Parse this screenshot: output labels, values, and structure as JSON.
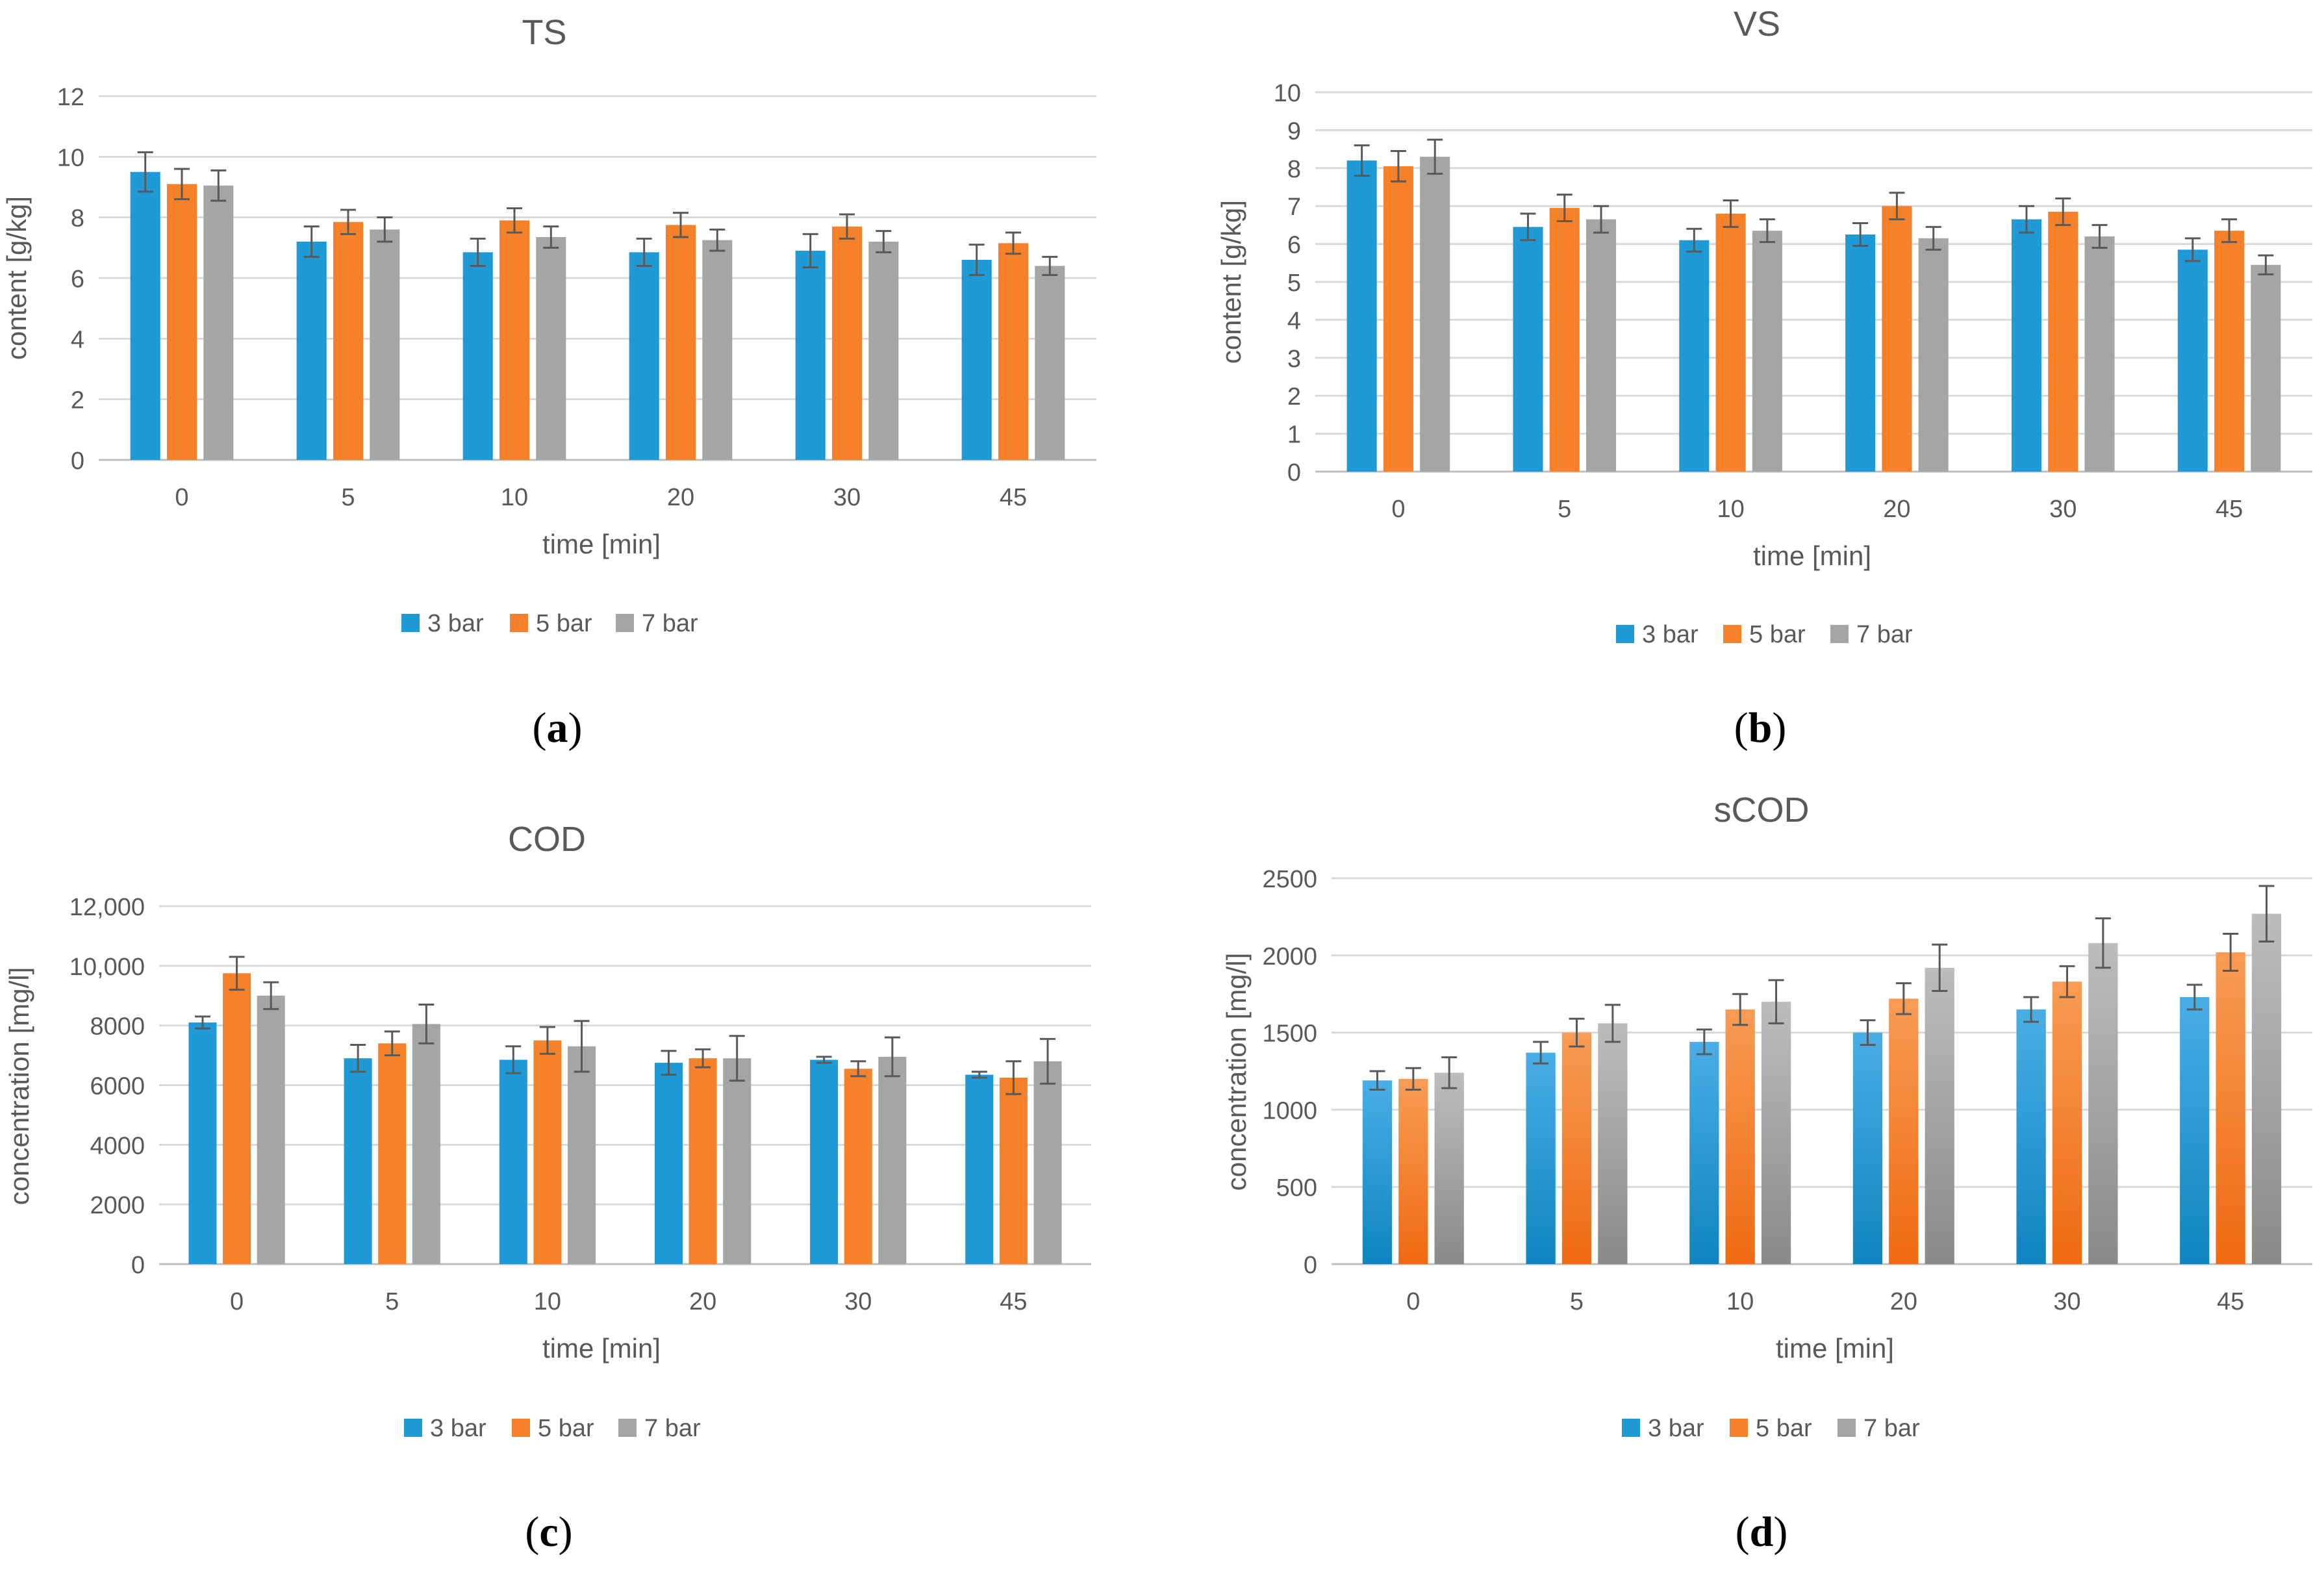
{
  "colors": {
    "s1": "#1f9ad6",
    "s2": "#f5822a",
    "s3": "#a5a5a5",
    "grid": "#d9d9d9",
    "axis_text": "#595959",
    "title_text": "#595959",
    "error_bar": "#595959"
  },
  "chart_data": [
    {
      "id": "a",
      "type": "bar",
      "title": "TS",
      "panel_label": "a",
      "xlabel": "time [min]",
      "ylabel": "content [g/kg]",
      "categories": [
        "0",
        "5",
        "10",
        "20",
        "30",
        "45"
      ],
      "yticks": [
        0,
        2,
        4,
        6,
        8,
        10,
        12
      ],
      "ytick_labels": [
        "0",
        "2",
        "4",
        "6",
        "8",
        "10",
        "12"
      ],
      "ylim": [
        0,
        12
      ],
      "series": [
        {
          "name": "3 bar",
          "values": [
            9.5,
            7.2,
            6.85,
            6.85,
            6.9,
            6.6
          ],
          "errors": [
            0.65,
            0.5,
            0.45,
            0.45,
            0.55,
            0.5
          ]
        },
        {
          "name": "5 bar",
          "values": [
            9.1,
            7.85,
            7.9,
            7.75,
            7.7,
            7.15
          ],
          "errors": [
            0.5,
            0.4,
            0.4,
            0.4,
            0.4,
            0.35
          ]
        },
        {
          "name": "7 bar",
          "values": [
            9.05,
            7.6,
            7.35,
            7.25,
            7.2,
            6.4
          ],
          "errors": [
            0.5,
            0.4,
            0.35,
            0.35,
            0.35,
            0.3
          ]
        }
      ]
    },
    {
      "id": "b",
      "type": "bar",
      "title": "VS",
      "panel_label": "b",
      "xlabel": "time [min]",
      "ylabel": "content [g/kg]",
      "categories": [
        "0",
        "5",
        "10",
        "20",
        "30",
        "45"
      ],
      "yticks": [
        0,
        1,
        2,
        3,
        4,
        5,
        6,
        7,
        8,
        9,
        10
      ],
      "ytick_labels": [
        "0",
        "1",
        "2",
        "3",
        "4",
        "5",
        "6",
        "7",
        "8",
        "9",
        "10"
      ],
      "ylim": [
        0,
        10
      ],
      "series": [
        {
          "name": "3 bar",
          "values": [
            8.2,
            6.45,
            6.1,
            6.25,
            6.65,
            5.85
          ],
          "errors": [
            0.4,
            0.35,
            0.3,
            0.3,
            0.35,
            0.3
          ]
        },
        {
          "name": "5 bar",
          "values": [
            8.05,
            6.95,
            6.8,
            7.0,
            6.85,
            6.35
          ],
          "errors": [
            0.4,
            0.35,
            0.35,
            0.35,
            0.35,
            0.3
          ]
        },
        {
          "name": "7 bar",
          "values": [
            8.3,
            6.65,
            6.35,
            6.15,
            6.2,
            5.45
          ],
          "errors": [
            0.45,
            0.35,
            0.3,
            0.3,
            0.3,
            0.25
          ]
        }
      ]
    },
    {
      "id": "c",
      "type": "bar",
      "title": "COD",
      "panel_label": "c",
      "xlabel": "time [min]",
      "ylabel": "concentration [mg/l]",
      "categories": [
        "0",
        "5",
        "10",
        "20",
        "30",
        "45"
      ],
      "yticks": [
        0,
        2000,
        4000,
        6000,
        8000,
        10000,
        12000
      ],
      "ytick_labels": [
        "0",
        "2000",
        "4000",
        "6000",
        "8000",
        "10,000",
        "12,000"
      ],
      "ylim": [
        0,
        12000
      ],
      "series": [
        {
          "name": "3 bar",
          "values": [
            8100,
            6900,
            6850,
            6750,
            6850,
            6350
          ],
          "errors": [
            200,
            450,
            450,
            400,
            100,
            100
          ]
        },
        {
          "name": "5 bar",
          "values": [
            9750,
            7400,
            7500,
            6900,
            6550,
            6250
          ],
          "errors": [
            550,
            400,
            450,
            300,
            250,
            550
          ]
        },
        {
          "name": "7 bar",
          "values": [
            9000,
            8050,
            7300,
            6900,
            6950,
            6800
          ],
          "errors": [
            450,
            650,
            850,
            750,
            650,
            750
          ]
        }
      ]
    },
    {
      "id": "d",
      "type": "bar",
      "title": "sCOD",
      "panel_label": "d",
      "xlabel": "time [min]",
      "ylabel": "concentration [mg/l]",
      "categories": [
        "0",
        "5",
        "10",
        "20",
        "30",
        "45"
      ],
      "yticks": [
        0,
        500,
        1000,
        1500,
        2000,
        2500
      ],
      "ytick_labels": [
        "0",
        "500",
        "1000",
        "1500",
        "2000",
        "2500"
      ],
      "ylim": [
        0,
        2500
      ],
      "series": [
        {
          "name": "3 bar",
          "values": [
            1190,
            1370,
            1440,
            1500,
            1650,
            1730
          ],
          "errors": [
            60,
            70,
            80,
            80,
            80,
            80
          ]
        },
        {
          "name": "5 bar",
          "values": [
            1200,
            1500,
            1650,
            1720,
            1830,
            2020
          ],
          "errors": [
            70,
            90,
            100,
            100,
            100,
            120
          ]
        },
        {
          "name": "7 bar",
          "values": [
            1240,
            1560,
            1700,
            1920,
            2080,
            2270
          ],
          "errors": [
            100,
            120,
            140,
            150,
            160,
            180
          ]
        }
      ]
    }
  ]
}
